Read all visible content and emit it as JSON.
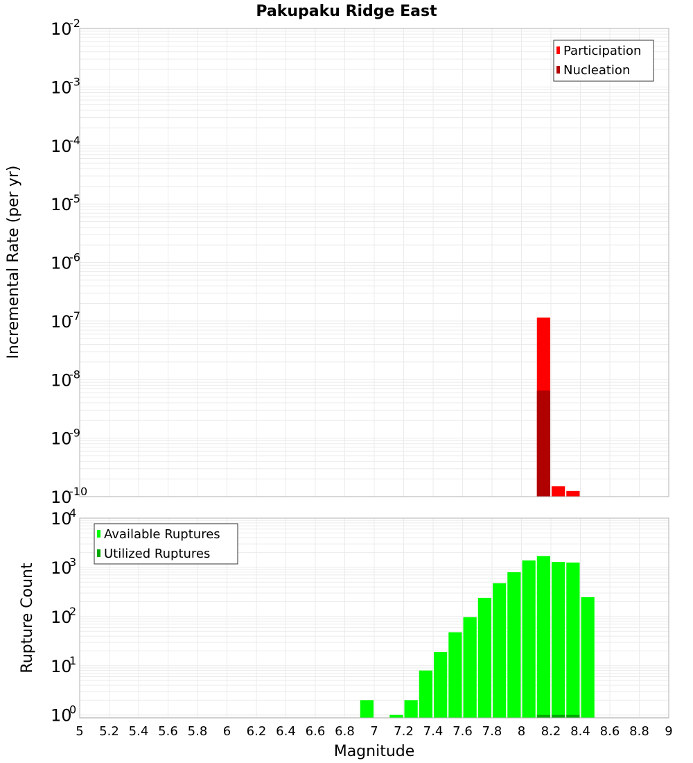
{
  "title": "Pakupaku Ridge East",
  "x_axis": {
    "label": "Magnitude",
    "ticks": [
      "5",
      "5.2",
      "5.4",
      "5.6",
      "5.8",
      "6",
      "6.2",
      "6.4",
      "6.6",
      "6.8",
      "7",
      "7.2",
      "7.4",
      "7.6",
      "7.8",
      "8",
      "8.2",
      "8.4",
      "8.6",
      "8.8",
      "9"
    ]
  },
  "colors": {
    "participation": "#ff0000",
    "nucleation": "#b00000",
    "available": "#00ff00",
    "utilized": "#00a800",
    "grid": "#ebebeb",
    "frame": "#b0b0b0"
  },
  "chart_data": [
    {
      "type": "bar",
      "title": "Pakupaku Ridge East",
      "xlabel": "Magnitude",
      "ylabel": "Incremental Rate (per yr)",
      "yscale": "log",
      "xlim": [
        5,
        9
      ],
      "ylim": [
        1e-10,
        0.01
      ],
      "y_ticks": [
        "10^-2",
        "10^-3",
        "10^-4",
        "10^-5",
        "10^-6",
        "10^-7",
        "10^-8",
        "10^-9",
        "10^-10"
      ],
      "bar_width": 0.1,
      "legend": [
        "Participation",
        "Nucleation"
      ],
      "legend_position": "upper right",
      "grid": true,
      "series": [
        {
          "name": "Participation",
          "x": [
            8.15,
            8.25,
            8.35
          ],
          "values": [
            1.15e-07,
            1.5e-10,
            1.25e-10
          ]
        },
        {
          "name": "Nucleation",
          "x": [
            8.15
          ],
          "values": [
            6.5e-09
          ]
        }
      ]
    },
    {
      "type": "bar",
      "xlabel": "Magnitude",
      "ylabel": "Rupture Count",
      "yscale": "log",
      "xlim": [
        5,
        9
      ],
      "ylim": [
        0.87,
        10000
      ],
      "y_ticks": [
        "10^0",
        "10^1",
        "10^2",
        "10^3",
        "10^4"
      ],
      "bar_width": 0.1,
      "legend": [
        "Available Ruptures",
        "Utilized Ruptures"
      ],
      "legend_position": "upper left",
      "grid": true,
      "series": [
        {
          "name": "Available Ruptures",
          "x": [
            6.95,
            7.15,
            7.25,
            7.35,
            7.45,
            7.55,
            7.65,
            7.75,
            7.85,
            7.95,
            8.05,
            8.15,
            8.25,
            8.35,
            8.45
          ],
          "values": [
            2,
            1,
            2,
            8,
            19,
            48,
            97,
            240,
            475,
            795,
            1380,
            1690,
            1290,
            1250,
            247
          ]
        },
        {
          "name": "Utilized Ruptures",
          "x": [
            8.15,
            8.25,
            8.35
          ],
          "values": [
            1,
            1,
            1
          ]
        }
      ]
    }
  ]
}
